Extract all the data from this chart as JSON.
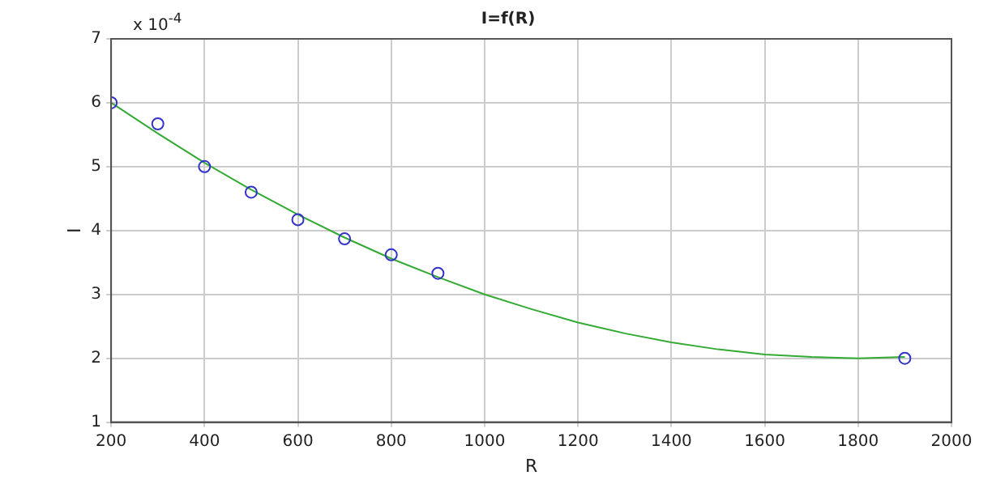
{
  "chart_data": {
    "type": "scatter",
    "title": "I=f(R)",
    "xlabel": "R",
    "ylabel": "I",
    "annotations": [
      "x 10$^{-4}$"
    ],
    "series": [
      {
        "type": "scatter",
        "color": "#3333cc",
        "x": [
          200,
          300,
          400,
          500,
          600,
          700,
          800,
          900,
          1900
        ],
        "values": [
          6.0,
          5.67,
          5.0,
          4.6,
          4.17,
          3.87,
          3.62,
          3.33,
          2.0
        ],
        "marker": "circle"
      },
      {
        "type": "line",
        "color": "#33aa33",
        "x": [
          200,
          300,
          400,
          500,
          600,
          700,
          800,
          900,
          1000,
          1100,
          1200,
          1300,
          1400,
          1500,
          1600,
          1700,
          1800,
          1900
        ],
        "values": [
          6.0,
          5.52,
          5.06,
          4.64,
          4.25,
          3.89,
          3.56,
          3.27,
          3.0,
          2.77,
          2.56,
          2.39,
          2.25,
          2.14,
          2.06,
          2.02,
          2.0,
          2.02
        ],
        "marker": "none",
        "line_style": "solid"
      }
    ],
    "xlim": [
      200,
      2000
    ],
    "xticks": [
      200,
      400,
      600,
      800,
      1000,
      1200,
      1400,
      1600,
      1800,
      2000
    ],
    "ylim": [
      1,
      7
    ],
    "yticks": [
      1,
      2,
      3,
      4,
      5,
      6,
      7
    ],
    "grid": true,
    "legend": false
  }
}
